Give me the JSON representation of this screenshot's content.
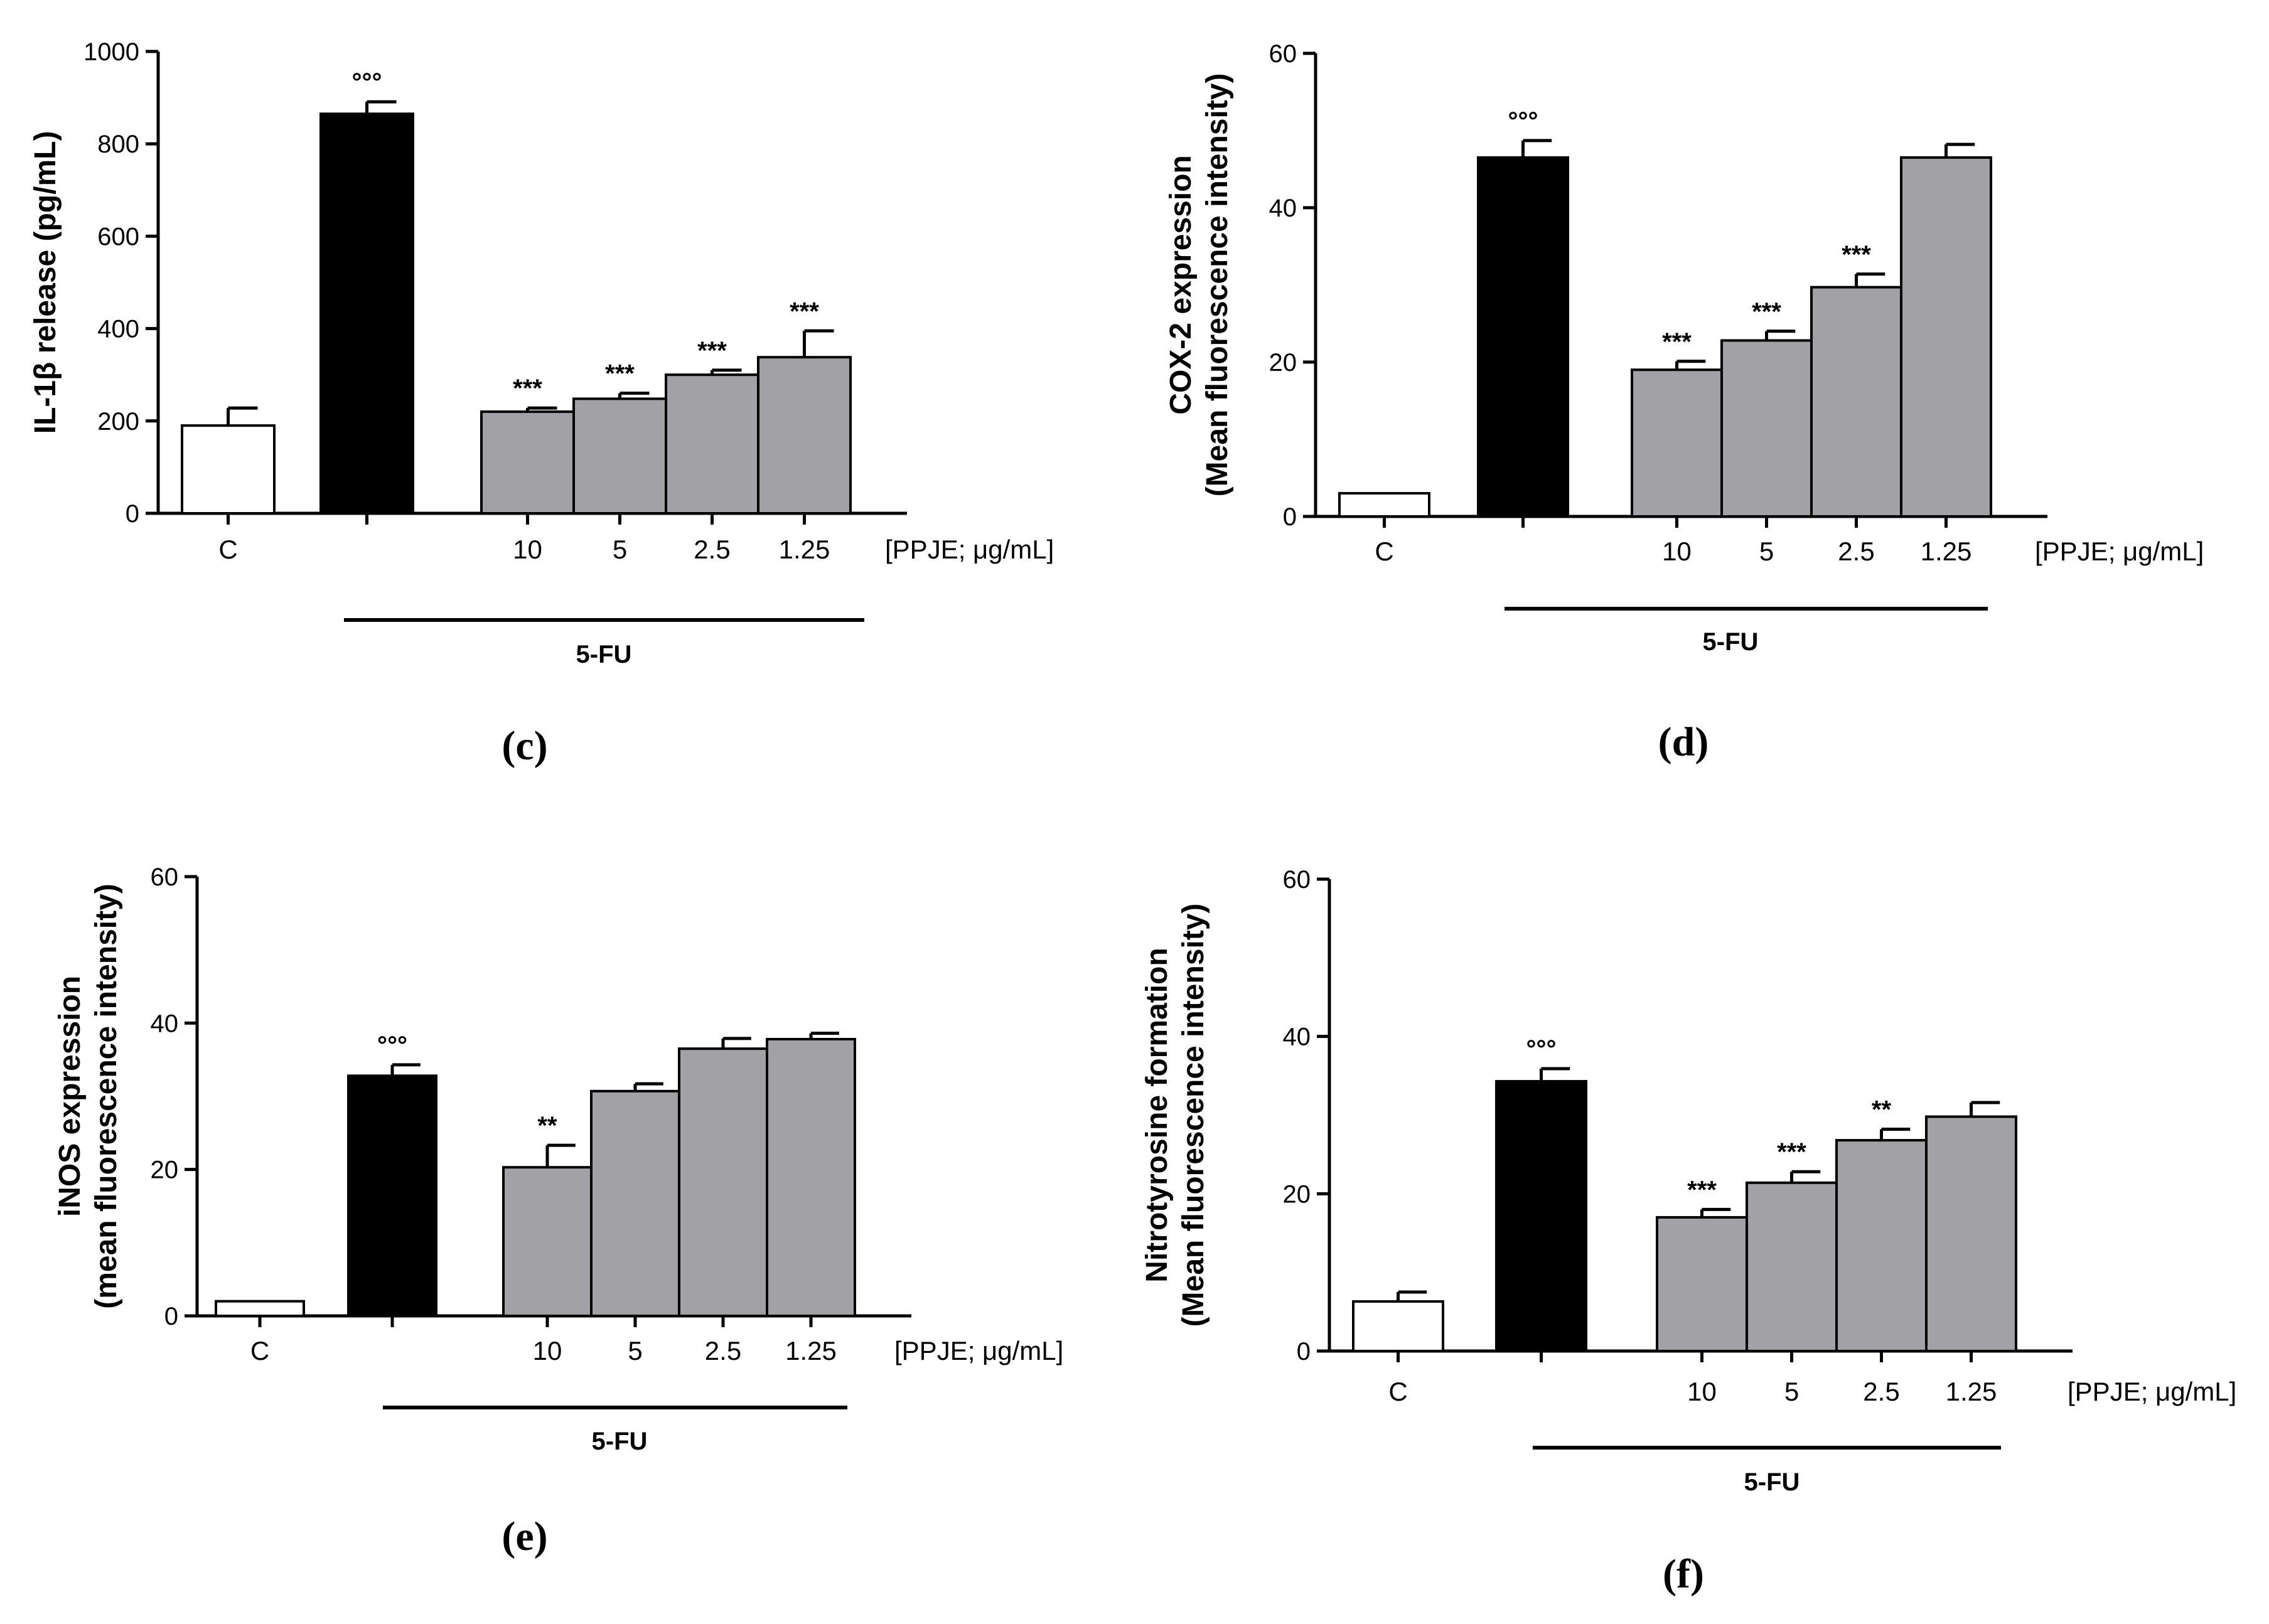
{
  "chart_data": [
    {
      "type": "bar",
      "panel_label": "(c)",
      "ylabel_lines": [
        "IL-1β release (pg/mL)"
      ],
      "ylim": [
        0,
        1000
      ],
      "yticks": [
        "0",
        "200",
        "400",
        "600",
        "800",
        "1000"
      ],
      "ytick_values": [
        0,
        200,
        400,
        600,
        800,
        1000
      ],
      "categories": [
        "C",
        "",
        "10",
        "5",
        "2.5",
        "1.25"
      ],
      "values": [
        190,
        865,
        220,
        248,
        300,
        338
      ],
      "errors": [
        38,
        26,
        8,
        12,
        10,
        57
      ],
      "annotations": [
        "",
        "°°°",
        "***",
        "***",
        "***",
        "***"
      ],
      "bar_colors": [
        "#ffffff",
        "#000000",
        "#a2a2a6",
        "#a2a2a6",
        "#a2a2a6",
        "#a2a2a6"
      ],
      "unit_label": "[PPJE; μg/mL]",
      "group_label": "5-FU"
    },
    {
      "type": "bar",
      "panel_label": "(d)",
      "ylabel_lines": [
        "COX-2 expression",
        "(Mean fluorescence intensity)"
      ],
      "ylim": [
        0,
        60
      ],
      "yticks": [
        "0",
        "20",
        "40",
        "60"
      ],
      "ytick_values": [
        0,
        20,
        40,
        60
      ],
      "categories": [
        "C",
        "",
        "10",
        "5",
        "2.5",
        "1.25"
      ],
      "values": [
        3,
        46.5,
        19,
        22.8,
        29.7,
        46.5
      ],
      "errors": [
        0,
        2.2,
        1.1,
        1.2,
        1.7,
        1.7
      ],
      "annotations": [
        "",
        "°°°",
        "***",
        "***",
        "***",
        ""
      ],
      "bar_colors": [
        "#ffffff",
        "#000000",
        "#a2a2a6",
        "#a2a2a6",
        "#a2a2a6",
        "#a2a2a6"
      ],
      "unit_label": "[PPJE; μg/mL]",
      "group_label": "5-FU"
    },
    {
      "type": "bar",
      "panel_label": "(e)",
      "ylabel_lines": [
        "iNOS expression",
        "(mean fluorescence intensity)"
      ],
      "ylim": [
        0,
        60
      ],
      "yticks": [
        "0",
        "20",
        "40",
        "60"
      ],
      "ytick_values": [
        0,
        20,
        40,
        60
      ],
      "categories": [
        "C",
        "",
        "10",
        "5",
        "2.5",
        "1.25"
      ],
      "values": [
        2,
        32.8,
        20.3,
        30.7,
        36.5,
        37.8
      ],
      "errors": [
        0,
        1.5,
        3.0,
        1.0,
        1.4,
        0.8
      ],
      "annotations": [
        "",
        "°°°",
        "**",
        "",
        "",
        ""
      ],
      "bar_colors": [
        "#ffffff",
        "#000000",
        "#a2a2a6",
        "#a2a2a6",
        "#a2a2a6",
        "#a2a2a6"
      ],
      "unit_label": "[PPJE; μg/mL]",
      "group_label": "5-FU"
    },
    {
      "type": "bar",
      "panel_label": "(f)",
      "ylabel_lines": [
        "Nitrotyrosine formation",
        "(Mean fluorescence intensity)"
      ],
      "ylim": [
        0,
        60
      ],
      "yticks": [
        "0",
        "20",
        "40",
        "60"
      ],
      "ytick_values": [
        0,
        20,
        40,
        60
      ],
      "categories": [
        "C",
        "",
        "10",
        "5",
        "2.5",
        "1.25"
      ],
      "values": [
        6.3,
        34.3,
        17,
        21.4,
        26.8,
        29.8
      ],
      "errors": [
        1.2,
        1.6,
        1.0,
        1.4,
        1.4,
        1.8
      ],
      "annotations": [
        "",
        "°°°",
        "***",
        "***",
        "**",
        ""
      ],
      "bar_colors": [
        "#ffffff",
        "#000000",
        "#a2a2a6",
        "#a2a2a6",
        "#a2a2a6",
        "#a2a2a6"
      ],
      "unit_label": "[PPJE; μg/mL]",
      "group_label": "5-FU"
    }
  ]
}
